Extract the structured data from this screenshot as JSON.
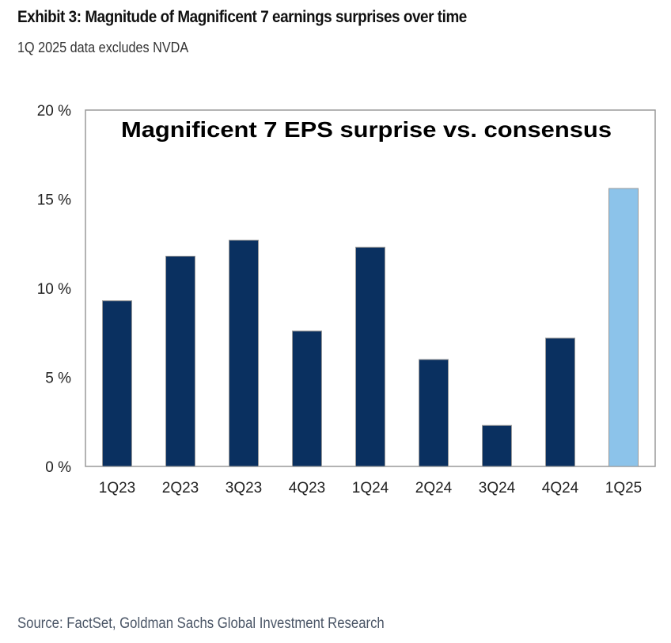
{
  "header": {
    "title": "Exhibit 3: Magnitude of Magnificent 7 earnings surprises over time",
    "subtitle": "1Q 2025 data excludes NVDA"
  },
  "footer": {
    "source": "Source: FactSet, Goldman Sachs Global Investment Research"
  },
  "colors": {
    "bar_primary": "#0a3060",
    "bar_highlight": "#8cc3ea",
    "bar_outline": "#9a9a9a",
    "axis": "#9a9a9a"
  },
  "chart_data": {
    "type": "bar",
    "title": "Magnificent 7 EPS surprise vs. consensus",
    "xlabel": "",
    "ylabel": "",
    "categories": [
      "1Q23",
      "2Q23",
      "3Q23",
      "4Q23",
      "1Q24",
      "2Q24",
      "3Q24",
      "4Q24",
      "1Q25"
    ],
    "values": [
      9.3,
      11.8,
      12.7,
      7.6,
      12.3,
      6.0,
      2.3,
      7.2,
      15.6
    ],
    "highlight": [
      false,
      false,
      false,
      false,
      false,
      false,
      false,
      false,
      true
    ],
    "ylim": [
      0,
      20
    ],
    "yticks": [
      0,
      5,
      10,
      15,
      20
    ],
    "ytick_labels": [
      "0 %",
      "5 %",
      "10 %",
      "15 %",
      "20 %"
    ],
    "unit": "%",
    "grid": false,
    "legend": "none"
  }
}
